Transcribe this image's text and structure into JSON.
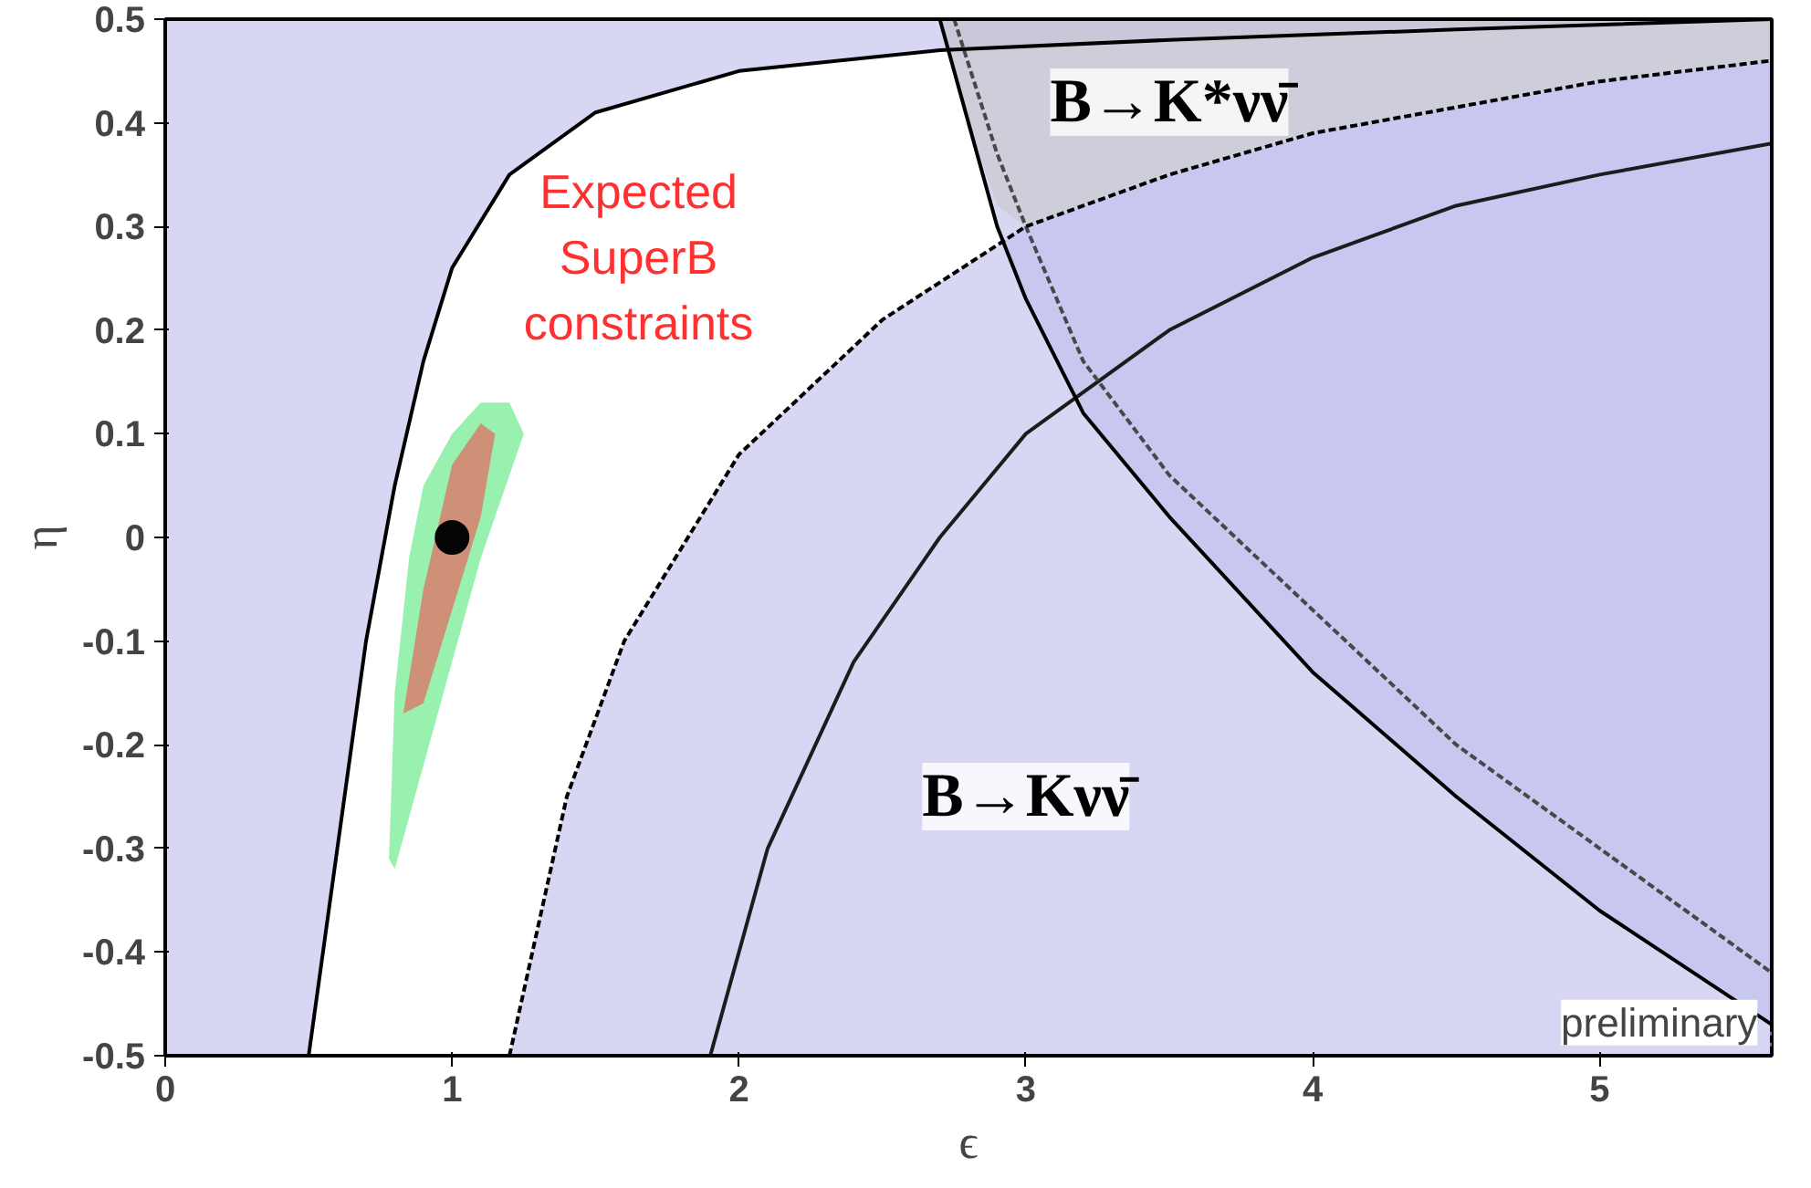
{
  "chart_data": {
    "type": "area",
    "xlabel": "ϵ",
    "ylabel": "η",
    "xlim": [
      0,
      5.6
    ],
    "ylim": [
      -0.5,
      0.5
    ],
    "xticks": [
      0,
      1,
      2,
      3,
      4,
      5
    ],
    "yticks": [
      -0.5,
      -0.4,
      -0.3,
      -0.2,
      -0.1,
      0,
      0.1,
      0.2,
      0.3,
      0.4,
      0.5
    ],
    "grid": false,
    "series": [
      {
        "line_style": "solid",
        "color": "#bcbcec",
        "x": [
          0,
          0.5,
          0.6,
          0.7,
          0.8,
          0.9,
          1.0,
          1.2,
          1.5,
          2.0,
          2.7,
          3.5,
          4.5,
          5.6,
          0
        ],
        "values": [
          -0.5,
          -0.5,
          -0.3,
          -0.1,
          0.05,
          0.17,
          0.26,
          0.35,
          0.41,
          0.45,
          0.47,
          0.48,
          0.49,
          0.5,
          0.5
        ]
      },
      {
        "line_style": "dashed",
        "color": "#bcbcec",
        "x": [
          1.2,
          1.4,
          1.6,
          2.0,
          2.5,
          3.0,
          3.5,
          4.0,
          5.0,
          5.6,
          5.6
        ],
        "values": [
          -0.5,
          -0.25,
          -0.1,
          0.08,
          0.21,
          0.3,
          0.35,
          0.39,
          0.44,
          0.46,
          -0.5
        ]
      },
      {
        "line_style": "solid",
        "color": "#bcbcec",
        "x": [
          2.7,
          2.8,
          2.9,
          3.0,
          3.2,
          3.5,
          4.0,
          4.5,
          5.0,
          5.6,
          5.6
        ],
        "values": [
          0.5,
          0.4,
          0.3,
          0.23,
          0.12,
          0.02,
          -0.13,
          -0.25,
          -0.36,
          -0.47,
          0.5
        ]
      },
      {
        "color": "#c8c8c8",
        "x": [
          2.7,
          2.8,
          2.9,
          3.0,
          3.5,
          4.0,
          5.0,
          5.6,
          5.6
        ],
        "values": [
          0.5,
          0.4,
          0.32,
          0.3,
          0.35,
          0.39,
          0.44,
          0.46,
          0.5
        ]
      },
      {
        "color": "#55e87a",
        "x": [
          0.78,
          0.8,
          0.85,
          0.9,
          1.0,
          1.1,
          1.2,
          1.25,
          1.2,
          1.1,
          1.0,
          0.9,
          0.85,
          0.8
        ],
        "values": [
          -0.31,
          -0.15,
          -0.02,
          0.05,
          0.1,
          0.13,
          0.13,
          0.1,
          0.06,
          -0.02,
          -0.12,
          -0.22,
          -0.27,
          -0.32
        ]
      },
      {
        "color": "#f25050",
        "x": [
          0.83,
          0.9,
          1.0,
          1.1,
          1.15,
          1.1,
          1.0,
          0.9
        ],
        "values": [
          -0.17,
          -0.05,
          0.07,
          0.11,
          0.1,
          0.02,
          -0.07,
          -0.16
        ]
      },
      {
        "type": "line",
        "line_style": "solid",
        "color": "#1c1c1c",
        "x": [
          1.9,
          2.1,
          2.4,
          2.7,
          3.0,
          3.5,
          4.0,
          4.5,
          5.0,
          5.6
        ],
        "values": [
          -0.5,
          -0.3,
          -0.12,
          0.0,
          0.1,
          0.2,
          0.27,
          0.32,
          0.35,
          0.38
        ]
      },
      {
        "type": "line",
        "line_style": "dashed",
        "color": "#484848",
        "x": [
          2.75,
          2.9,
          3.0,
          3.2,
          3.5,
          4.0,
          4.5,
          5.0,
          5.6
        ],
        "values": [
          0.5,
          0.37,
          0.3,
          0.17,
          0.06,
          -0.07,
          -0.2,
          -0.3,
          -0.42
        ]
      },
      {
        "type": "scatter",
        "marker": "circle",
        "color": "#050505",
        "x": [
          1.0
        ],
        "values": [
          0.0
        ]
      }
    ],
    "annotations": [
      "Expected\nSuperB\nconstraints",
      "B→K*νν̄",
      "B→Kνν̄",
      "preliminary"
    ]
  }
}
